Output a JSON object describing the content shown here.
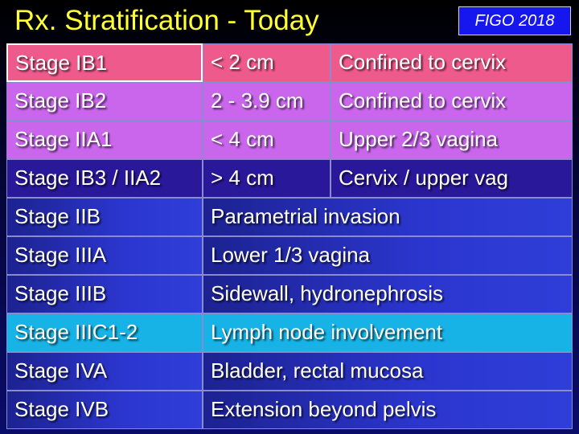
{
  "header": {
    "title": "Rx. Stratification - Today",
    "badge": "FIGO 2018"
  },
  "table": {
    "rows": [
      [
        "Stage IB1",
        "< 2 cm",
        "Confined to cervix"
      ],
      [
        "Stage IB2",
        "2 - 3.9 cm",
        "Confined to cervix"
      ],
      [
        "Stage IIA1",
        "< 4 cm",
        "Upper 2/3 vagina"
      ],
      [
        "Stage IB3 / IIA2",
        "> 4 cm",
        "Cervix / upper vag"
      ],
      [
        "Stage IIB",
        "Parametrial invasion"
      ],
      [
        "Stage IIIA",
        "Lower 1/3 vagina"
      ],
      [
        "Stage IIIB",
        "Sidewall, hydronephrosis"
      ],
      [
        "Stage IIIC1-2",
        "Lymph node involvement"
      ],
      [
        "Stage IVA",
        "Bladder, rectal mucosa"
      ],
      [
        "Stage IVB",
        "Extension beyond pelvis"
      ]
    ]
  }
}
